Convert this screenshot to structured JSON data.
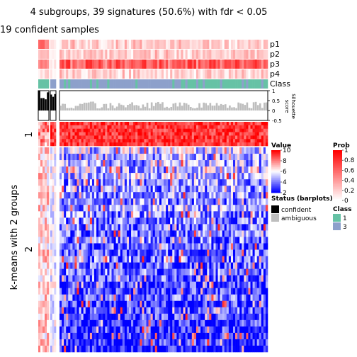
{
  "chart_data": {
    "type": "heatmap",
    "title": "4 subgroups, 39 signatures (50.6%) with fdr < 0.05",
    "subtitle": "19 confident samples",
    "annotation_rows": [
      "p1",
      "p2",
      "p3",
      "p4",
      "Class"
    ],
    "silhouette": {
      "label": "Silhouette\nscore",
      "ticks": [
        "1",
        "0.5",
        "0",
        "-0.5"
      ],
      "range": [
        -0.5,
        1
      ]
    },
    "row_split_title": "k-means with 2 groups",
    "row_groups": [
      "1",
      "2"
    ],
    "legends": {
      "value": {
        "title": "Value",
        "ticks": [
          "10",
          "8",
          "6",
          "4",
          "2"
        ],
        "range": [
          2,
          10
        ],
        "colors": [
          "#0000ff",
          "#ffffff",
          "#ff0000"
        ]
      },
      "prob": {
        "title": "Prob",
        "ticks": [
          "1",
          "0.8",
          "0.6",
          "0.4",
          "0.2",
          "0"
        ],
        "range": [
          0,
          1
        ],
        "colors": [
          "#ffffff",
          "#ff0000"
        ]
      },
      "status": {
        "title": "Status (barplots)",
        "items": [
          {
            "label": "confident",
            "color": "#000000"
          },
          {
            "label": "ambiguous",
            "color": "#bebebe"
          }
        ]
      },
      "class": {
        "title": "Class",
        "items": [
          {
            "label": "1",
            "color": "#66c2a5"
          },
          {
            "label": "3",
            "color": "#8da0cb"
          }
        ]
      }
    }
  }
}
